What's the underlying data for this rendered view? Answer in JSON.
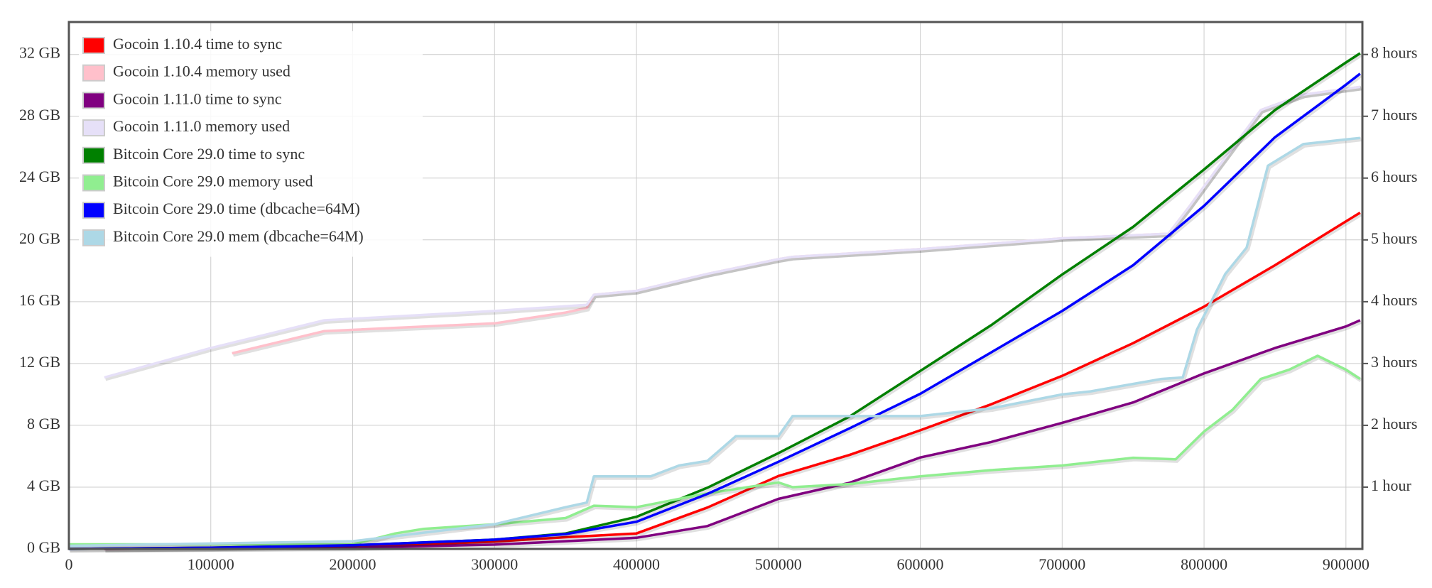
{
  "chart_data": {
    "type": "line",
    "xlim": [
      0,
      911600
    ],
    "xticks": [
      0,
      100000,
      200000,
      300000,
      400000,
      500000,
      600000,
      700000,
      800000,
      900000
    ],
    "ylim": [
      0,
      34.1
    ],
    "yticks": [
      {
        "value": 0,
        "label": "0 GB"
      },
      {
        "value": 4,
        "label": "4 GB"
      },
      {
        "value": 8,
        "label": "8 GB"
      },
      {
        "value": 12,
        "label": "12 GB"
      },
      {
        "value": 16,
        "label": "16 GB"
      },
      {
        "value": 20,
        "label": "20 GB"
      },
      {
        "value": 24,
        "label": "24 GB"
      },
      {
        "value": 28,
        "label": "28 GB"
      },
      {
        "value": 32,
        "label": "32 GB"
      }
    ],
    "y2lim": [
      0,
      8.525
    ],
    "y2ticks": [
      {
        "value": 1,
        "label": "1 hour"
      },
      {
        "value": 2,
        "label": "2 hours"
      },
      {
        "value": 3,
        "label": "3 hours"
      },
      {
        "value": 4,
        "label": "4 hours"
      },
      {
        "value": 5,
        "label": "5 hours"
      },
      {
        "value": 6,
        "label": "6 hours"
      },
      {
        "value": 7,
        "label": "7 hours"
      },
      {
        "value": 8,
        "label": "8 hours"
      }
    ],
    "grid": true,
    "legend": "top-left",
    "series": [
      {
        "name": "Gocoin 1.10.4 time to sync",
        "color": "#ff0000",
        "axis": "y2",
        "x": [
          25000,
          100000,
          200000,
          300000,
          350000,
          400000,
          450000,
          500000,
          550000,
          600000,
          650000,
          700000,
          750000,
          800000,
          850000,
          900000,
          910000
        ],
        "values": [
          0,
          0.01,
          0.03,
          0.12,
          0.19,
          0.25,
          0.67,
          1.18,
          1.52,
          1.92,
          2.34,
          2.8,
          3.33,
          3.92,
          4.59,
          5.3,
          5.44
        ]
      },
      {
        "name": "Gocoin 1.10.4 memory used",
        "color": "#ffc0cb",
        "axis": "y",
        "x": [
          115000,
          180000,
          300000,
          350000,
          365000,
          370000,
          400000,
          450000,
          500000,
          510000,
          600000,
          700000,
          775000,
          790000,
          810000,
          840000,
          870000,
          910000
        ],
        "values": [
          12.66,
          14.1,
          14.6,
          15.3,
          15.6,
          16.45,
          16.7,
          17.8,
          18.75,
          18.9,
          19.4,
          20.1,
          20.4,
          22.2,
          24.7,
          28.4,
          29.4,
          29.9
        ]
      },
      {
        "name": "Gocoin 1.11.0 time to sync",
        "color": "#800080",
        "axis": "y2",
        "x": [
          25000,
          100000,
          200000,
          300000,
          400000,
          450000,
          500000,
          550000,
          600000,
          650000,
          700000,
          750000,
          800000,
          850000,
          900000,
          910000
        ],
        "values": [
          0,
          0.01,
          0.02,
          0.07,
          0.18,
          0.37,
          0.81,
          1.07,
          1.48,
          1.73,
          2.04,
          2.37,
          2.84,
          3.25,
          3.6,
          3.7
        ]
      },
      {
        "name": "Gocoin 1.11.0 memory used",
        "color": "#e6e0f8",
        "axis": "y",
        "x": [
          25000,
          100000,
          180000,
          300000,
          365000,
          370000,
          400000,
          450000,
          500000,
          510000,
          600000,
          700000,
          775000,
          790000,
          810000,
          840000,
          870000,
          910000
        ],
        "values": [
          11.1,
          13.0,
          14.8,
          15.4,
          15.8,
          16.45,
          16.7,
          17.8,
          18.75,
          18.9,
          19.4,
          20.1,
          20.4,
          22.2,
          24.7,
          28.4,
          29.4,
          29.9
        ]
      },
      {
        "name": "Bitcoin Core 29.0 time to sync",
        "color": "#008000",
        "axis": "y2",
        "x": [
          0,
          100000,
          200000,
          300000,
          350000,
          400000,
          450000,
          500000,
          550000,
          600000,
          650000,
          700000,
          750000,
          800000,
          850000,
          900000,
          910000
        ],
        "values": [
          0,
          0.02,
          0.06,
          0.15,
          0.25,
          0.52,
          0.99,
          1.55,
          2.14,
          2.88,
          3.62,
          4.44,
          5.21,
          6.14,
          7.1,
          7.87,
          8.02
        ]
      },
      {
        "name": "Bitcoin Core 29.0 memory used",
        "color": "#90ee90",
        "axis": "y",
        "x": [
          0,
          200000,
          230000,
          250000,
          300000,
          350000,
          370000,
          400000,
          450000,
          500000,
          510000,
          550000,
          600000,
          650000,
          700000,
          750000,
          780000,
          800000,
          820000,
          840000,
          860000,
          880000,
          900000,
          910000
        ],
        "values": [
          0.3,
          0.3,
          1.0,
          1.3,
          1.6,
          2.0,
          2.8,
          2.7,
          3.6,
          4.3,
          4.0,
          4.2,
          4.7,
          5.1,
          5.4,
          5.9,
          5.8,
          7.6,
          9.0,
          11.0,
          11.6,
          12.5,
          11.6,
          11.0
        ]
      },
      {
        "name": "Bitcoin Core 29.0 time (dbcache=64M)",
        "color": "#0000ff",
        "axis": "y2",
        "x": [
          0,
          100000,
          200000,
          300000,
          350000,
          400000,
          450000,
          500000,
          550000,
          600000,
          650000,
          700000,
          750000,
          800000,
          850000,
          900000,
          910000
        ],
        "values": [
          0,
          0.02,
          0.06,
          0.15,
          0.24,
          0.44,
          0.89,
          1.41,
          1.95,
          2.51,
          3.18,
          3.85,
          4.59,
          5.55,
          6.66,
          7.51,
          7.69
        ]
      },
      {
        "name": "Bitcoin Core 29.0 mem (dbcache=64M)",
        "color": "#add8e6",
        "axis": "y",
        "x": [
          0,
          200000,
          300000,
          350000,
          365000,
          370000,
          410000,
          430000,
          450000,
          470000,
          500000,
          510000,
          600000,
          650000,
          700000,
          720000,
          770000,
          785000,
          795000,
          815000,
          830000,
          845000,
          870000,
          910000
        ],
        "values": [
          0.2,
          0.5,
          1.6,
          2.7,
          3.0,
          4.7,
          4.7,
          5.4,
          5.7,
          7.3,
          7.3,
          8.6,
          8.6,
          9.1,
          10.0,
          10.2,
          11.0,
          11.1,
          14.2,
          17.8,
          19.5,
          24.8,
          26.2,
          26.6
        ]
      }
    ]
  }
}
